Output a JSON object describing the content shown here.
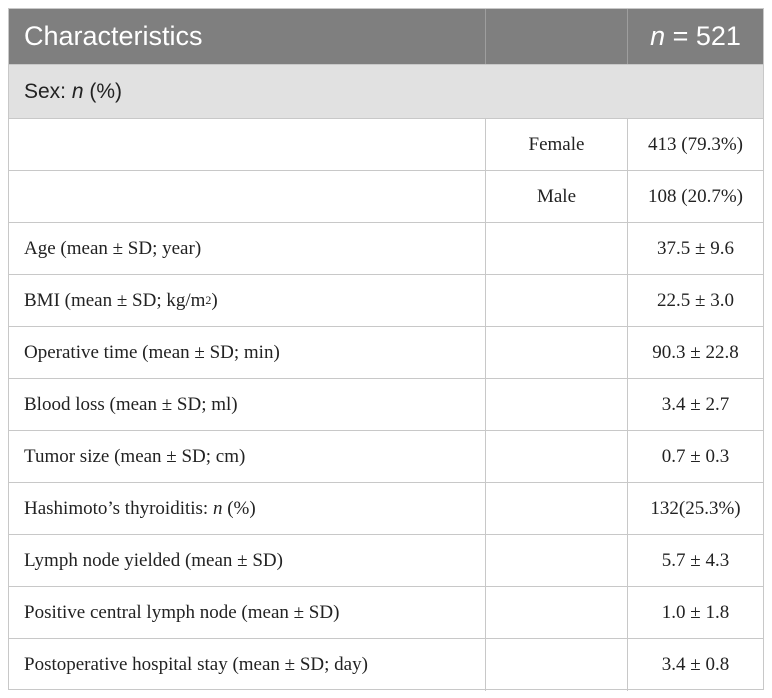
{
  "header": {
    "characteristics": "Characteristics",
    "n_italic": "n",
    "n_value": " = 521"
  },
  "section": {
    "label_prefix": "Sex: ",
    "label_italic": "n",
    "label_suffix": " (%)"
  },
  "sex_rows": [
    {
      "label": "Female",
      "value": "413 (79.3%)"
    },
    {
      "label": "Male",
      "value": "108 (20.7%)"
    }
  ],
  "rows": [
    {
      "label": "Age (mean ± SD; year)",
      "value": "37.5 ± 9.6"
    },
    {
      "label_prefix": "BMI (mean ± SD; kg/m",
      "label_sup": "2",
      "label_suffix": ")",
      "value": "22.5 ± 3.0"
    },
    {
      "label": "Operative time (mean ± SD; min)",
      "value": "90.3 ± 22.8"
    },
    {
      "label": "Blood loss (mean ± SD; ml)",
      "value": "3.4 ± 2.7"
    },
    {
      "label": "Tumor size (mean ± SD; cm)",
      "value": "0.7 ± 0.3"
    },
    {
      "label_prefix": "Hashimoto’s thyroiditis: ",
      "label_italic": "n",
      "label_suffix": " (%)",
      "value": "132(25.3%)"
    },
    {
      "label": "Lymph node yielded (mean ± SD)",
      "value": "5.7 ± 4.3"
    },
    {
      "label": "Positive central lymph node (mean ± SD)",
      "value": "1.0 ± 1.8"
    },
    {
      "label": "Postoperative hospital stay (mean ± SD; day)",
      "value": "3.4 ± 0.8"
    }
  ]
}
